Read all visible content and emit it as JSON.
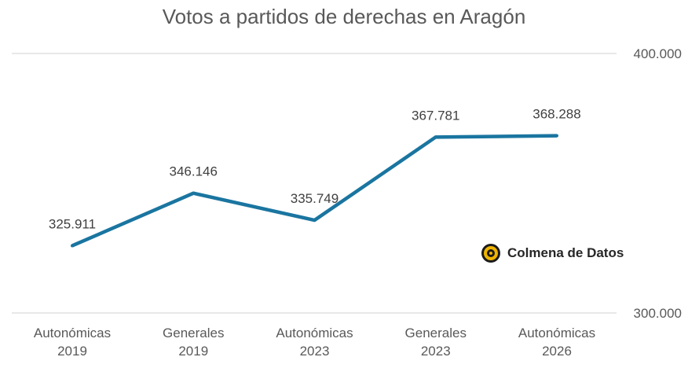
{
  "chart_data": {
    "type": "line",
    "title": "Votos a partidos de derechas en Aragón",
    "categories": [
      [
        "Autonómicas",
        "2019"
      ],
      [
        "Generales",
        "2019"
      ],
      [
        "Autonómicas",
        "2023"
      ],
      [
        "Generales",
        "2023"
      ],
      [
        "Autonómicas",
        "2026"
      ]
    ],
    "values": [
      325911,
      346146,
      335749,
      367781,
      368288
    ],
    "data_labels": [
      "325.911",
      "346.146",
      "335.749",
      "367.781",
      "368.288"
    ],
    "ylim": [
      300000,
      400000
    ],
    "y_ticks": [
      {
        "value": 300000,
        "label": "300.000"
      },
      {
        "value": 400000,
        "label": "400.000"
      }
    ],
    "y_axis_side": "right",
    "grid": true,
    "line_color": "#1a75a0"
  },
  "branding": {
    "text": "Colmena de Datos"
  }
}
